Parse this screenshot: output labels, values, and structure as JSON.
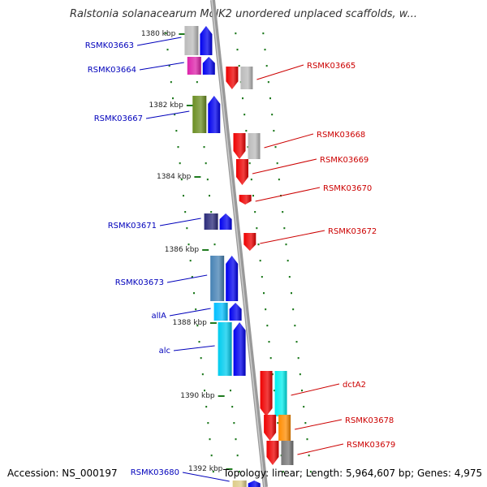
{
  "title": "Ralstonia solanacearum MolK2 unordered unplaced scaffolds, w...",
  "footer": {
    "accession": "Accession: NS_000197",
    "topology": "Topology: linear; Length: 5,964,607 bp; Genes: 4,975"
  },
  "colors": {
    "left_label": "#0000bb",
    "right_label": "#cc0000",
    "tick": "#1e7a1e",
    "axis": "#888888"
  },
  "ruler_labels": [
    "1380 kbp",
    "1382 kbp",
    "1384 kbp",
    "1386 kbp",
    "1388 kbp",
    "1390 kbp",
    "1392 kbp"
  ],
  "genes_left": [
    {
      "id": "g3663",
      "label": "RSMK03663",
      "color": "#bbbbbb",
      "arrow": "#0000ee"
    },
    {
      "id": "g3664",
      "label": "RSMK03664",
      "color": "#dd22aa",
      "arrow": "#0000ee"
    },
    {
      "id": "g3667",
      "label": "RSMK03667",
      "color": "#6b8e23",
      "arrow": "#0000ee"
    },
    {
      "id": "g3671",
      "label": "RSMK03671",
      "color": "#2a2a7a",
      "arrow": "#0000ee"
    },
    {
      "id": "g3673",
      "label": "RSMK03673",
      "color": "#4682b4",
      "arrow": "#0000ee"
    },
    {
      "id": "gallA",
      "label": "allA",
      "color": "#00bfff",
      "arrow": "#0000ee"
    },
    {
      "id": "galc",
      "label": "alc",
      "color": "#00ccee",
      "arrow": "#0000ee"
    },
    {
      "id": "g3680",
      "label": "RSMK03680",
      "color": "#ddcc88",
      "arrow": "#0000ee"
    }
  ],
  "genes_right": [
    {
      "id": "g3665",
      "label": "RSMK03665",
      "color": "#bbbbbb",
      "arrow": "#ee0000"
    },
    {
      "id": "g3668",
      "label": "RSMK03668",
      "color": "#bbbbbb",
      "arrow": "#ee0000"
    },
    {
      "id": "g3669",
      "label": "RSMK03669",
      "color": "",
      "arrow": "#ee0000"
    },
    {
      "id": "g3670",
      "label": "RSMK03670",
      "color": "",
      "arrow": "#ee0000"
    },
    {
      "id": "g3672",
      "label": "RSMK03672",
      "color": "",
      "arrow": "#ee0000"
    },
    {
      "id": "gdctA2",
      "label": "dctA2",
      "color": "#00eeee",
      "arrow": "#ee0000"
    },
    {
      "id": "g3678",
      "label": "RSMK03678",
      "color": "#ff8c00",
      "arrow": "#ee0000"
    },
    {
      "id": "g3679",
      "label": "RSMK03679",
      "color": "#777777",
      "arrow": "#ee0000"
    }
  ]
}
